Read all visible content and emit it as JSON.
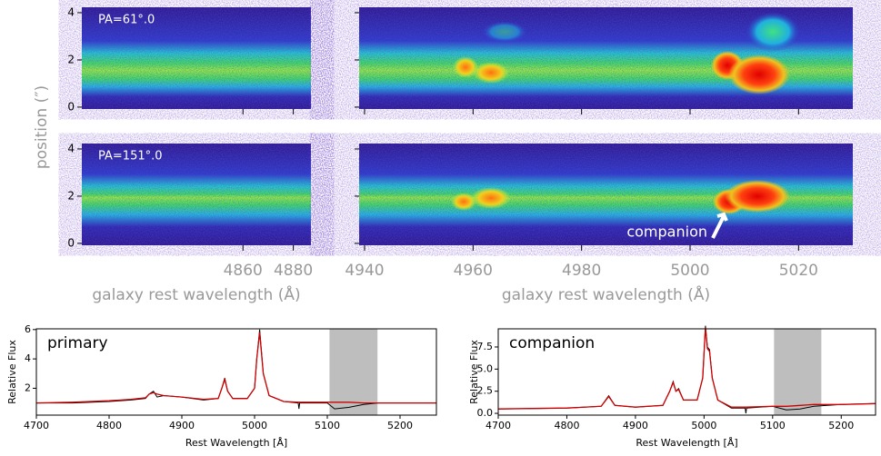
{
  "chart_data": [
    {
      "type": "spectrum2d",
      "ylabel": "position (″)",
      "ylim": [
        -0.08,
        4.23
      ],
      "yticks": [
        0,
        2,
        4
      ],
      "rows": [
        {
          "label": "PA=61°.0"
        },
        {
          "label": "PA=151°.0"
        }
      ],
      "panels": [
        {
          "xlim": [
            4796,
            4887
          ],
          "xticks": [
            4860,
            4880
          ],
          "xlabel": "galaxy rest wavelength (Å)"
        },
        {
          "xlim": [
            4939,
            5030
          ],
          "xticks": [
            4940,
            4960,
            4980,
            5000,
            5020
          ],
          "xlabel": "galaxy rest wavelength (Å)"
        }
      ],
      "annotation": "companion"
    },
    {
      "type": "line",
      "label": "primary",
      "xlabel": "Rest Wavelength [Å]",
      "ylabel": "Relative Flux",
      "xlim": [
        4700,
        5250
      ],
      "xticks": [
        4700,
        4800,
        4900,
        5000,
        5100,
        5200
      ],
      "ylim": [
        0.17,
        6.05
      ],
      "yticks": [
        2,
        4,
        6
      ],
      "span": [
        5103,
        5169
      ],
      "span_color": "#bebebe",
      "x": [
        4700,
        4750,
        4800,
        4830,
        4850,
        4855,
        4861,
        4866,
        4875,
        4900,
        4930,
        4950,
        4955,
        4959,
        4963,
        4970,
        4990,
        5000,
        5003,
        5007,
        5012,
        5020,
        5040,
        5060,
        5061,
        5062,
        5080,
        5100,
        5110,
        5130,
        5150,
        5170,
        5200,
        5250
      ],
      "series": [
        {
          "color": "#000000",
          "values": [
            1.0,
            1.0,
            1.1,
            1.2,
            1.3,
            1.6,
            1.8,
            1.4,
            1.5,
            1.4,
            1.2,
            1.3,
            2.0,
            2.7,
            1.8,
            1.3,
            1.3,
            2.0,
            4.0,
            6.0,
            3.0,
            1.5,
            1.1,
            1.0,
            0.6,
            1.0,
            1.0,
            1.0,
            0.6,
            0.7,
            0.9,
            1.0,
            1.0,
            1.0
          ]
        },
        {
          "color": "#cc0000",
          "values": [
            1.0,
            1.05,
            1.15,
            1.25,
            1.35,
            1.6,
            1.7,
            1.6,
            1.5,
            1.4,
            1.25,
            1.3,
            2.0,
            2.6,
            1.8,
            1.3,
            1.3,
            2.0,
            4.0,
            5.8,
            3.0,
            1.5,
            1.1,
            1.05,
            1.05,
            1.05,
            1.05,
            1.05,
            1.05,
            1.05,
            1.0,
            1.0,
            1.0,
            1.0
          ]
        }
      ]
    },
    {
      "type": "line",
      "label": "companion",
      "xlabel": "Rest Wavelength [Å]",
      "ylabel": "Relative Flux",
      "xlim": [
        4700,
        5250
      ],
      "xticks": [
        4700,
        4800,
        4900,
        5000,
        5100,
        5200
      ],
      "ylim": [
        -0.2,
        9.55
      ],
      "yticks": [
        {
          "value": 0,
          "label": "0.0"
        },
        {
          "value": 2.5,
          "label": "2.5"
        },
        {
          "value": 5,
          "label": "5.0"
        },
        {
          "value": 7.5,
          "label": "7.5"
        }
      ],
      "span": [
        5102,
        5171
      ],
      "span_color": "#bebebe",
      "x": [
        4700,
        4800,
        4850,
        4861,
        4870,
        4900,
        4940,
        4950,
        4955,
        4959,
        4963,
        4970,
        4990,
        4998,
        5002,
        5005,
        5008,
        5012,
        5020,
        5040,
        5060,
        5061,
        5062,
        5100,
        5120,
        5140,
        5160,
        5200,
        5250
      ],
      "series": [
        {
          "color": "#000000",
          "values": [
            0.5,
            0.6,
            0.8,
            2.0,
            0.9,
            0.7,
            0.9,
            2.5,
            3.6,
            2.5,
            2.8,
            1.5,
            1.5,
            4.0,
            9.9,
            7.5,
            7.2,
            4.0,
            1.5,
            0.6,
            0.6,
            0.0,
            0.6,
            0.8,
            0.4,
            0.5,
            0.8,
            1.0,
            1.1
          ]
        },
        {
          "color": "#cc0000",
          "values": [
            0.5,
            0.6,
            0.8,
            1.9,
            0.9,
            0.7,
            0.9,
            2.5,
            3.5,
            2.5,
            2.7,
            1.5,
            1.5,
            4.0,
            9.7,
            7.3,
            7.0,
            4.0,
            1.5,
            0.7,
            0.7,
            0.7,
            0.7,
            0.8,
            0.8,
            0.9,
            1.0,
            1.0,
            1.1
          ]
        }
      ]
    }
  ]
}
